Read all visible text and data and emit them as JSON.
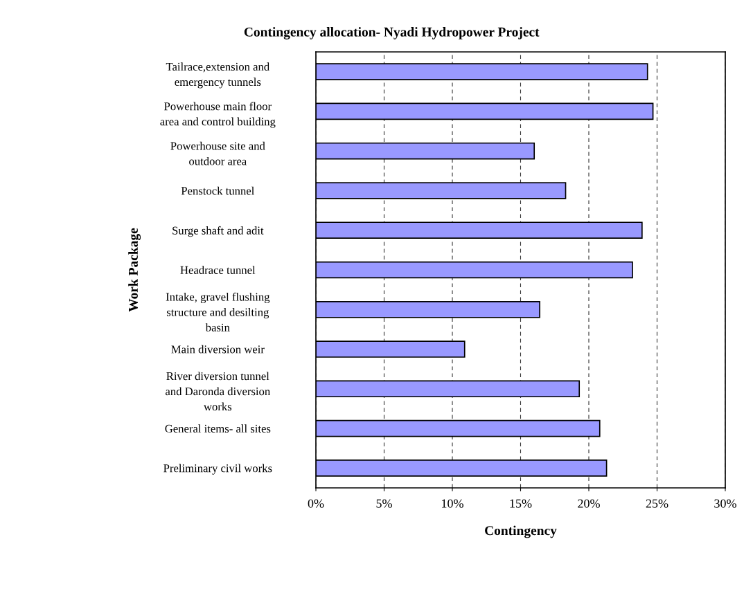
{
  "chart_data": {
    "type": "bar",
    "orientation": "horizontal",
    "title": "Contingency allocation- Nyadi Hydropower Project",
    "xlabel": "Contingency",
    "ylabel": "Work Package",
    "categories": [
      "Tailrace,extension and\nemergency tunnels",
      "Powerhouse main floor\narea and control building",
      "Powerhouse site and\noutdoor area",
      "Penstock tunnel",
      "Surge shaft and adit",
      "Headrace tunnel",
      "Intake, gravel flushing\nstructure and desilting\nbasin",
      "Main diversion weir",
      "River diversion tunnel\nand Daronda diversion\nworks",
      "General items- all sites",
      "Preliminary civil works"
    ],
    "values": [
      24.3,
      24.7,
      16.0,
      18.3,
      23.9,
      23.2,
      16.4,
      10.9,
      19.3,
      20.8,
      21.3
    ],
    "color": "#9999ff",
    "xlim": [
      0,
      30
    ],
    "xticks": [
      {
        "value": 0,
        "label": "0%"
      },
      {
        "value": 5,
        "label": "5%"
      },
      {
        "value": 10,
        "label": "10%"
      },
      {
        "value": 15,
        "label": "15%"
      },
      {
        "value": 20,
        "label": "20%"
      },
      {
        "value": 25,
        "label": "25%"
      },
      {
        "value": 30,
        "label": "30%"
      }
    ],
    "grid": "x",
    "line_style": "dashed",
    "legend": false
  }
}
